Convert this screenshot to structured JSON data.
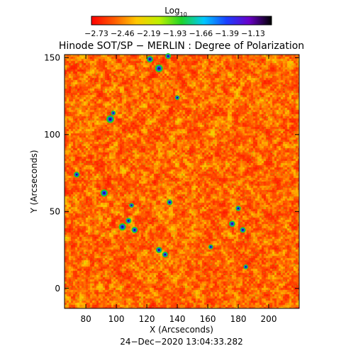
{
  "chart_data": {
    "type": "heatmap",
    "title": "Hinode SOT/SP − MERLIN : Degree of Polarization",
    "colorbar": {
      "label_main": "Log",
      "label_sub": "10",
      "ticks": [
        "−2.73",
        "−2.46",
        "−2.19",
        "−1.93",
        "−1.66",
        "−1.39",
        "−1.13"
      ],
      "range": [
        -2.73,
        -1.13
      ],
      "colors": [
        "#ff0000",
        "#ff5a00",
        "#ffc800",
        "#bff000",
        "#1ed32a",
        "#00c8ff",
        "#1a40ff",
        "#6a00c8",
        "#000000"
      ]
    },
    "xlabel": "X (Arcseconds)",
    "ylabel": "Y (Arcseconds)",
    "xlim": [
      66,
      220
    ],
    "ylim": [
      -13,
      152
    ],
    "x_ticks": [
      "80",
      "100",
      "120",
      "140",
      "160",
      "180",
      "200"
    ],
    "y_ticks": [
      "0",
      "50",
      "100",
      "150"
    ],
    "grid": false,
    "timestamp": "24−Dec−2020 13:04:33.282",
    "typical_log10_range": [
      -2.7,
      -2.2
    ],
    "polarized_patches": [
      {
        "x": 92,
        "y": 62,
        "r": 1.5
      },
      {
        "x": 96,
        "y": 110,
        "r": 1.6
      },
      {
        "x": 98,
        "y": 114,
        "r": 1.0
      },
      {
        "x": 74,
        "y": 74,
        "r": 1.2
      },
      {
        "x": 122,
        "y": 149,
        "r": 1.4
      },
      {
        "x": 128,
        "y": 143,
        "r": 1.6
      },
      {
        "x": 134,
        "y": 151,
        "r": 1.2
      },
      {
        "x": 104,
        "y": 40,
        "r": 1.5
      },
      {
        "x": 108,
        "y": 44,
        "r": 1.2
      },
      {
        "x": 112,
        "y": 38,
        "r": 1.3
      },
      {
        "x": 135,
        "y": 56,
        "r": 1.2
      },
      {
        "x": 128,
        "y": 25,
        "r": 1.3
      },
      {
        "x": 132,
        "y": 22,
        "r": 1.2
      },
      {
        "x": 176,
        "y": 42,
        "r": 1.3
      },
      {
        "x": 180,
        "y": 52,
        "r": 1.1
      },
      {
        "x": 183,
        "y": 38,
        "r": 1.2
      },
      {
        "x": 162,
        "y": 27,
        "r": 1.0
      },
      {
        "x": 140,
        "y": 124,
        "r": 1.0
      },
      {
        "x": 185,
        "y": 14,
        "r": 1.0
      },
      {
        "x": 110,
        "y": 54,
        "r": 1.0
      }
    ]
  }
}
